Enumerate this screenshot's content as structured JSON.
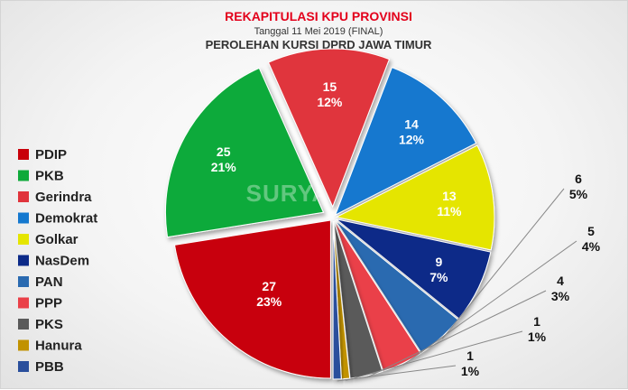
{
  "chart_data": {
    "type": "pie",
    "title": "REKAPITULASI KPU PROVINSI",
    "subtitle": "Tanggal 11 Mei 2019 (FINAL)",
    "subtitle2": "PEROLEHAN KURSI DPRD JAWA TIMUR",
    "legend_position": "left",
    "watermark": "SURYA",
    "slices": [
      {
        "name": "PDIP",
        "seats": 27,
        "percent": "23%",
        "color": "#c8000a"
      },
      {
        "name": "PKB",
        "seats": 25,
        "percent": "21%",
        "color": "#0faa3a"
      },
      {
        "name": "Gerindra",
        "seats": 15,
        "percent": "12%",
        "color": "#e0343c"
      },
      {
        "name": "Demokrat",
        "seats": 14,
        "percent": "12%",
        "color": "#1478cf"
      },
      {
        "name": "Golkar",
        "seats": 13,
        "percent": "11%",
        "color": "#e5e500"
      },
      {
        "name": "NasDem",
        "seats": 9,
        "percent": "7%",
        "color": "#0c2a88"
      },
      {
        "name": "PAN",
        "seats": 6,
        "percent": "5%",
        "color": "#2a6ab0"
      },
      {
        "name": "PPP",
        "seats": 5,
        "percent": "4%",
        "color": "#ea4048"
      },
      {
        "name": "PKS",
        "seats": 4,
        "percent": "3%",
        "color": "#5a5a5a"
      },
      {
        "name": "Hanura",
        "seats": 1,
        "percent": "1%",
        "color": "#c19200"
      },
      {
        "name": "PBB",
        "seats": 1,
        "percent": "1%",
        "color": "#2a4f9c"
      }
    ]
  }
}
